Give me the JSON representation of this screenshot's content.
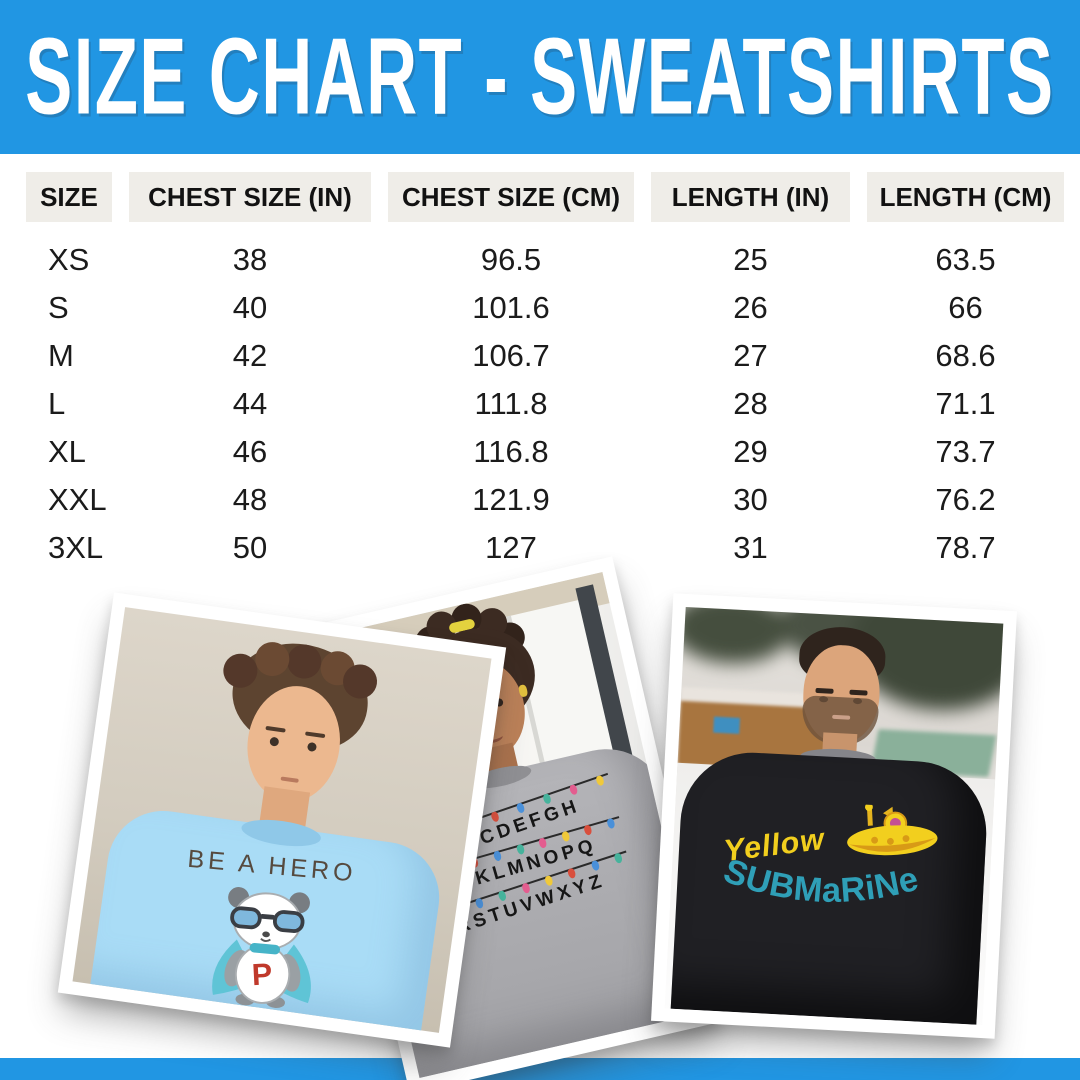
{
  "page": {
    "title": "SIZE CHART - SWEATSHIRTS",
    "accent_color": "#2196E3",
    "header_box_color": "#EFEDE8",
    "background_color": "#FFFFFF"
  },
  "table": {
    "columns": [
      "SIZE",
      "CHEST SIZE (IN)",
      "CHEST SIZE (CM)",
      "LENGTH (IN)",
      "LENGTH (CM)"
    ],
    "rows": [
      [
        "XS",
        "38",
        "96.5",
        "25",
        "63.5"
      ],
      [
        "S",
        "40",
        "101.6",
        "26",
        "66"
      ],
      [
        "M",
        "42",
        "106.7",
        "27",
        "68.6"
      ],
      [
        "L",
        "44",
        "111.8",
        "28",
        "71.1"
      ],
      [
        "XL",
        "46",
        "116.8",
        "29",
        "73.7"
      ],
      [
        "XXL",
        "48",
        "121.9",
        "30",
        "76.2"
      ],
      [
        "3XL",
        "50",
        "127",
        "31",
        "78.7"
      ]
    ]
  },
  "photos": [
    {
      "name": "light-blue-panda-sweatshirt-photo",
      "print_text": "BE A HERO",
      "panda_letter": "P",
      "icon": "panda-hero-icon",
      "shirt_color": "#A9DCF6"
    },
    {
      "name": "gray-alphabet-lights-sweatshirt-photo",
      "print_lines": [
        "ABCDEFGH",
        "IJKLMNOPQ",
        "RSTUVWXYZ"
      ],
      "bulb_colors": [
        "#46B39C",
        "#E35D8F",
        "#F0C93A",
        "#D94F3D",
        "#4A90D9"
      ],
      "shirt_color": "#A7A7AB"
    },
    {
      "name": "black-yellow-submarine-sweatshirt-photo",
      "print_line1": "Yellow",
      "print_line2": "SUBMaRiNe",
      "icon": "submarine-icon",
      "shirt_color": "#202024",
      "yellow": "#F2CF1E",
      "teal": "#2F9FB7"
    }
  ]
}
